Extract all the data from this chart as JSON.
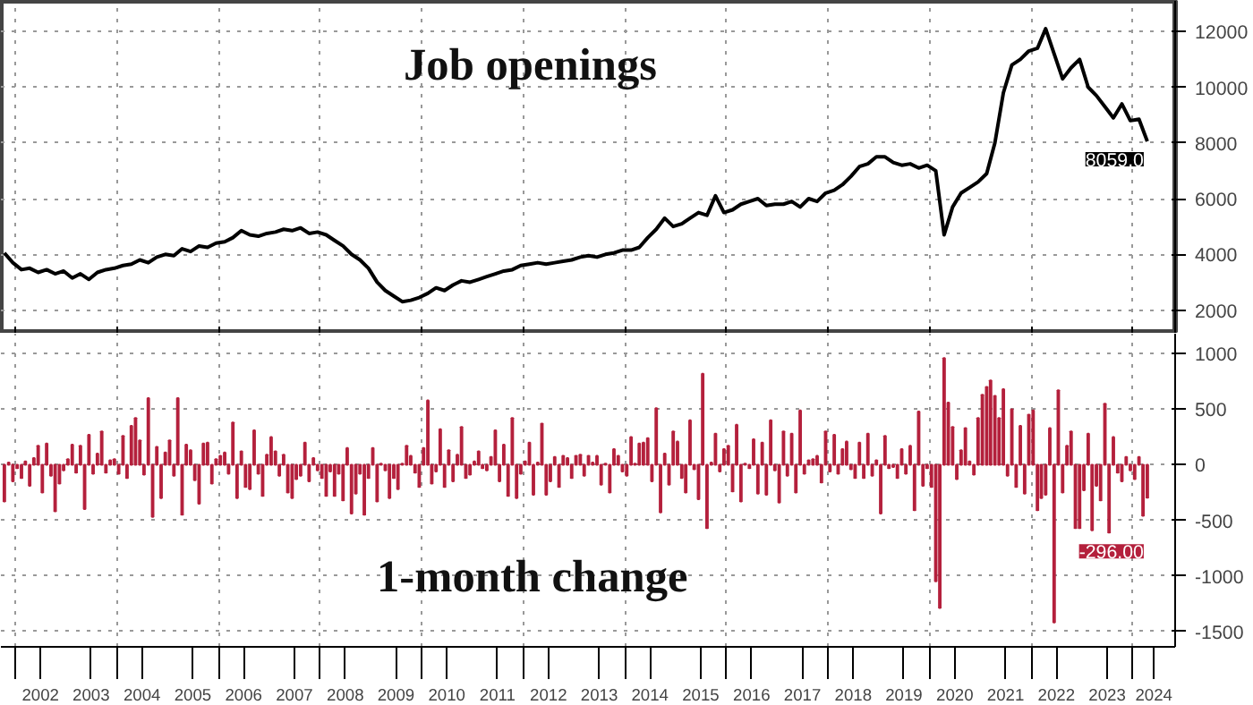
{
  "chart_data": [
    {
      "type": "line",
      "title": "Job openings",
      "x": [
        "2001-10",
        "2001-12",
        "2002-02",
        "2002-04",
        "2002-06",
        "2002-08",
        "2002-10",
        "2002-12",
        "2003-02",
        "2003-04",
        "2003-06",
        "2003-08",
        "2003-10",
        "2003-12",
        "2004-02",
        "2004-04",
        "2004-06",
        "2004-08",
        "2004-10",
        "2004-12",
        "2005-02",
        "2005-04",
        "2005-06",
        "2005-08",
        "2005-10",
        "2005-12",
        "2006-02",
        "2006-04",
        "2006-06",
        "2006-08",
        "2006-10",
        "2006-12",
        "2007-02",
        "2007-04",
        "2007-06",
        "2007-08",
        "2007-10",
        "2007-12",
        "2008-02",
        "2008-04",
        "2008-06",
        "2008-08",
        "2008-10",
        "2008-12",
        "2009-02",
        "2009-04",
        "2009-06",
        "2009-08",
        "2009-10",
        "2009-12",
        "2010-02",
        "2010-04",
        "2010-06",
        "2010-08",
        "2010-10",
        "2010-12",
        "2011-02",
        "2011-04",
        "2011-06",
        "2011-08",
        "2011-10",
        "2011-12",
        "2012-02",
        "2012-04",
        "2012-06",
        "2012-08",
        "2012-10",
        "2012-12",
        "2013-02",
        "2013-04",
        "2013-06",
        "2013-08",
        "2013-10",
        "2013-12",
        "2014-02",
        "2014-04",
        "2014-06",
        "2014-08",
        "2014-10",
        "2014-12",
        "2015-02",
        "2015-04",
        "2015-06",
        "2015-08",
        "2015-10",
        "2015-12",
        "2016-02",
        "2016-04",
        "2016-06",
        "2016-08",
        "2016-10",
        "2016-12",
        "2017-02",
        "2017-04",
        "2017-06",
        "2017-08",
        "2017-10",
        "2017-12",
        "2018-02",
        "2018-04",
        "2018-06",
        "2018-08",
        "2018-10",
        "2018-12",
        "2019-02",
        "2019-04",
        "2019-06",
        "2019-08",
        "2019-10",
        "2019-12",
        "2020-02",
        "2020-04",
        "2020-06",
        "2020-08",
        "2020-10",
        "2020-12",
        "2021-02",
        "2021-04",
        "2021-06",
        "2021-08",
        "2021-10",
        "2021-12",
        "2022-02",
        "2022-04",
        "2022-06",
        "2022-08",
        "2022-10",
        "2022-12",
        "2023-02",
        "2023-04",
        "2023-06",
        "2023-08",
        "2023-10",
        "2023-12",
        "2024-02",
        "2024-04"
      ],
      "series": [
        {
          "color": "#000000",
          "values": [
            4050,
            3700,
            3450,
            3500,
            3350,
            3450,
            3300,
            3400,
            3150,
            3300,
            3100,
            3350,
            3450,
            3500,
            3600,
            3650,
            3800,
            3700,
            3900,
            4000,
            3950,
            4200,
            4100,
            4300,
            4250,
            4400,
            4450,
            4600,
            4850,
            4700,
            4650,
            4750,
            4800,
            4900,
            4850,
            4950,
            4750,
            4800,
            4700,
            4500,
            4300,
            4000,
            3800,
            3500,
            3000,
            2700,
            2500,
            2300,
            2350,
            2450,
            2600,
            2800,
            2700,
            2900,
            3050,
            3000,
            3100,
            3200,
            3300,
            3400,
            3450,
            3600,
            3650,
            3700,
            3650,
            3700,
            3750,
            3800,
            3900,
            3950,
            3900,
            4000,
            4050,
            4150,
            4150,
            4250,
            4600,
            4900,
            5300,
            5000,
            5100,
            5300,
            5500,
            5400,
            6100,
            5500,
            5600,
            5800,
            5900,
            6000,
            5750,
            5800,
            5800,
            5900,
            5700,
            6000,
            5900,
            6200,
            6300,
            6500,
            6800,
            7150,
            7250,
            7500,
            7500,
            7300,
            7200,
            7250,
            7100,
            7200,
            7000,
            4700,
            5700,
            6200,
            6400,
            6600,
            6900,
            8000,
            9800,
            10800,
            11000,
            11300,
            11400,
            12100,
            11200,
            10300,
            10700,
            11000,
            10000,
            9700,
            9300,
            8900,
            9400,
            8800,
            8850,
            8059
          ]
        }
      ],
      "xlim": [
        "2001-09-20",
        "2024-11-01"
      ],
      "xticks": [
        {
          "value": "2002-01-01",
          "label": null
        },
        {
          "value": "2004-01-01",
          "label": null
        },
        {
          "value": "2006-01-01",
          "label": null
        },
        {
          "value": "2008-01-01",
          "label": null
        },
        {
          "value": "2010-01-01",
          "label": null
        },
        {
          "value": "2012-01-01",
          "label": null
        },
        {
          "value": "2014-01-01",
          "label": null
        },
        {
          "value": "2016-01-01",
          "label": null
        },
        {
          "value": "2018-01-01",
          "label": null
        },
        {
          "value": "2020-01-01",
          "label": null
        },
        {
          "value": "2022-01-01",
          "label": null
        },
        {
          "value": "2024-01-01",
          "label": null
        }
      ],
      "ylim": [
        1150,
        13100
      ],
      "yticks": [
        2000,
        4000,
        6000,
        8000,
        10000,
        12000
      ],
      "grid": true,
      "line_style": "solid",
      "tick_labels": "y",
      "annotations": [
        {
          "text": "8059.0",
          "x": "2024-04",
          "y": 8059
        }
      ]
    },
    {
      "type": "bar",
      "title": "1-month change",
      "x": [
        "2001-10",
        "2001-11",
        "2001-12",
        "2002-01",
        "2002-02",
        "2002-03",
        "2002-04",
        "2002-05",
        "2002-06",
        "2002-07",
        "2002-08",
        "2002-09",
        "2002-10",
        "2002-11",
        "2002-12",
        "2003-01",
        "2003-02",
        "2003-03",
        "2003-04",
        "2003-05",
        "2003-06",
        "2003-07",
        "2003-08",
        "2003-09",
        "2003-10",
        "2003-11",
        "2003-12",
        "2004-01",
        "2004-02",
        "2004-03",
        "2004-04",
        "2004-05",
        "2004-06",
        "2004-07",
        "2004-08",
        "2004-09",
        "2004-10",
        "2004-11",
        "2004-12",
        "2005-01",
        "2005-02",
        "2005-03",
        "2005-04",
        "2005-05",
        "2005-06",
        "2005-07",
        "2005-08",
        "2005-09",
        "2005-10",
        "2005-11",
        "2005-12",
        "2006-01",
        "2006-02",
        "2006-03",
        "2006-04",
        "2006-05",
        "2006-06",
        "2006-07",
        "2006-08",
        "2006-09",
        "2006-10",
        "2006-11",
        "2006-12",
        "2007-01",
        "2007-02",
        "2007-03",
        "2007-04",
        "2007-05",
        "2007-06",
        "2007-07",
        "2007-08",
        "2007-09",
        "2007-10",
        "2007-11",
        "2007-12",
        "2008-01",
        "2008-02",
        "2008-03",
        "2008-04",
        "2008-05",
        "2008-06",
        "2008-07",
        "2008-08",
        "2008-09",
        "2008-10",
        "2008-11",
        "2008-12",
        "2009-01",
        "2009-02",
        "2009-03",
        "2009-04",
        "2009-05",
        "2009-06",
        "2009-07",
        "2009-08",
        "2009-09",
        "2009-10",
        "2009-11",
        "2009-12",
        "2010-01",
        "2010-02",
        "2010-03",
        "2010-04",
        "2010-05",
        "2010-06",
        "2010-07",
        "2010-08",
        "2010-09",
        "2010-10",
        "2010-11",
        "2010-12",
        "2011-01",
        "2011-02",
        "2011-03",
        "2011-04",
        "2011-05",
        "2011-06",
        "2011-07",
        "2011-08",
        "2011-09",
        "2011-10",
        "2011-11",
        "2011-12",
        "2012-01",
        "2012-02",
        "2012-03",
        "2012-04",
        "2012-05",
        "2012-06",
        "2012-07",
        "2012-08",
        "2012-09",
        "2012-10",
        "2012-11",
        "2012-12",
        "2013-01",
        "2013-02",
        "2013-03",
        "2013-04",
        "2013-05",
        "2013-06",
        "2013-07",
        "2013-08",
        "2013-09",
        "2013-10",
        "2013-11",
        "2013-12",
        "2014-01",
        "2014-02",
        "2014-03",
        "2014-04",
        "2014-05",
        "2014-06",
        "2014-07",
        "2014-08",
        "2014-09",
        "2014-10",
        "2014-11",
        "2014-12",
        "2015-01",
        "2015-02",
        "2015-03",
        "2015-04",
        "2015-05",
        "2015-06",
        "2015-07",
        "2015-08",
        "2015-09",
        "2015-10",
        "2015-11",
        "2015-12",
        "2016-01",
        "2016-02",
        "2016-03",
        "2016-04",
        "2016-05",
        "2016-06",
        "2016-07",
        "2016-08",
        "2016-09",
        "2016-10",
        "2016-11",
        "2016-12",
        "2017-01",
        "2017-02",
        "2017-03",
        "2017-04",
        "2017-05",
        "2017-06",
        "2017-07",
        "2017-08",
        "2017-09",
        "2017-10",
        "2017-11",
        "2017-12",
        "2018-01",
        "2018-02",
        "2018-03",
        "2018-04",
        "2018-05",
        "2018-06",
        "2018-07",
        "2018-08",
        "2018-09",
        "2018-10",
        "2018-11",
        "2018-12",
        "2019-01",
        "2019-02",
        "2019-03",
        "2019-04",
        "2019-05",
        "2019-06",
        "2019-07",
        "2019-08",
        "2019-09",
        "2019-10",
        "2019-11",
        "2019-12",
        "2020-01",
        "2020-02",
        "2020-03",
        "2020-04",
        "2020-05",
        "2020-06",
        "2020-07",
        "2020-08",
        "2020-09",
        "2020-10",
        "2020-11",
        "2020-12",
        "2021-01",
        "2021-02",
        "2021-03",
        "2021-04",
        "2021-05",
        "2021-06",
        "2021-07",
        "2021-08",
        "2021-09",
        "2021-10",
        "2021-11",
        "2021-12",
        "2022-01",
        "2022-02",
        "2022-03",
        "2022-04",
        "2022-05",
        "2022-06",
        "2022-07",
        "2022-08",
        "2022-09",
        "2022-10",
        "2022-11",
        "2022-12",
        "2023-01",
        "2023-02",
        "2023-03",
        "2023-04",
        "2023-05",
        "2023-06",
        "2023-07",
        "2023-08",
        "2023-09",
        "2023-10",
        "2023-11",
        "2023-12",
        "2024-01",
        "2024-02",
        "2024-03",
        "2024-04"
      ],
      "series": [
        {
          "color": "#b4203c",
          "values": [
            -330,
            20,
            -150,
            -30,
            -120,
            30,
            -190,
            60,
            170,
            -250,
            190,
            -100,
            -420,
            -170,
            -50,
            50,
            180,
            -70,
            170,
            -400,
            270,
            -80,
            100,
            300,
            -70,
            40,
            50,
            -80,
            260,
            -120,
            350,
            420,
            220,
            -90,
            600,
            -470,
            160,
            -300,
            110,
            220,
            -100,
            600,
            -450,
            180,
            130,
            -140,
            -350,
            190,
            200,
            -170,
            50,
            80,
            110,
            -80,
            380,
            -300,
            120,
            -200,
            -220,
            310,
            -80,
            -280,
            90,
            250,
            120,
            -100,
            90,
            -250,
            -300,
            -130,
            -100,
            200,
            -150,
            60,
            -50,
            -120,
            -280,
            -60,
            -280,
            -80,
            -320,
            150,
            -440,
            -260,
            -80,
            -450,
            -120,
            150,
            -330,
            10,
            -50,
            -300,
            -120,
            -220,
            10,
            170,
            80,
            -70,
            -200,
            150,
            580,
            -170,
            -60,
            320,
            -200,
            130,
            -150,
            90,
            340,
            -120,
            -90,
            30,
            120,
            -30,
            -50,
            70,
            310,
            -150,
            180,
            -280,
            420,
            -300,
            -80,
            30,
            200,
            -270,
            20,
            370,
            -270,
            -150,
            70,
            -200,
            80,
            60,
            -120,
            80,
            90,
            -100,
            80,
            20,
            80,
            -180,
            10,
            -250,
            140,
            80,
            -60,
            -100,
            250,
            10,
            190,
            200,
            240,
            -150,
            510,
            -430,
            100,
            -180,
            300,
            210,
            -120,
            -250,
            400,
            -40,
            -310,
            820,
            -570,
            20,
            280,
            -60,
            140,
            170,
            -240,
            360,
            -330,
            10,
            -30,
            230,
            -260,
            200,
            -270,
            400,
            -50,
            -340,
            300,
            -100,
            280,
            -250,
            490,
            -80,
            40,
            50,
            80,
            -160,
            300,
            -60,
            270,
            -80,
            140,
            210,
            -40,
            -120,
            200,
            -120,
            280,
            -100,
            40,
            -440,
            260,
            -30,
            -20,
            -120,
            140,
            -80,
            170,
            -410,
            480,
            -190,
            -30,
            -200,
            -1050,
            -1290,
            960,
            560,
            340,
            -130,
            130,
            330,
            30,
            -90,
            420,
            630,
            700,
            760,
            620,
            420,
            680,
            -100,
            500,
            -200,
            350,
            -260,
            450,
            490,
            -410,
            -300,
            -270,
            330,
            -1420,
            670,
            -250,
            170,
            300,
            -570,
            -570,
            -230,
            280,
            -590,
            -190,
            -320,
            550,
            -610,
            250,
            -70,
            -150,
            70,
            -50,
            -130,
            70,
            -460,
            -296
          ]
        }
      ],
      "xlim": [
        "2001-09-20",
        "2024-11-01"
      ],
      "xticks": [
        {
          "value": "2002-01-01",
          "label": null
        },
        {
          "value": "2002-07-01",
          "label": "2002"
        },
        {
          "value": "2003-07-01",
          "label": "2003"
        },
        {
          "value": "2004-01-01",
          "label": null
        },
        {
          "value": "2004-07-01",
          "label": "2004"
        },
        {
          "value": "2005-07-01",
          "label": "2005"
        },
        {
          "value": "2006-01-01",
          "label": null
        },
        {
          "value": "2006-07-01",
          "label": "2006"
        },
        {
          "value": "2007-07-01",
          "label": "2007"
        },
        {
          "value": "2008-01-01",
          "label": null
        },
        {
          "value": "2008-07-01",
          "label": "2008"
        },
        {
          "value": "2009-07-01",
          "label": "2009"
        },
        {
          "value": "2010-01-01",
          "label": null
        },
        {
          "value": "2010-07-01",
          "label": "2010"
        },
        {
          "value": "2011-07-01",
          "label": "2011"
        },
        {
          "value": "2012-01-01",
          "label": null
        },
        {
          "value": "2012-07-01",
          "label": "2012"
        },
        {
          "value": "2013-07-01",
          "label": "2013"
        },
        {
          "value": "2014-01-01",
          "label": null
        },
        {
          "value": "2014-07-01",
          "label": "2014"
        },
        {
          "value": "2015-07-01",
          "label": "2015"
        },
        {
          "value": "2016-01-01",
          "label": null
        },
        {
          "value": "2016-07-01",
          "label": "2016"
        },
        {
          "value": "2017-07-01",
          "label": "2017"
        },
        {
          "value": "2018-01-01",
          "label": null
        },
        {
          "value": "2018-07-01",
          "label": "2018"
        },
        {
          "value": "2019-07-01",
          "label": "2019"
        },
        {
          "value": "2020-01-01",
          "label": null
        },
        {
          "value": "2020-07-01",
          "label": "2020"
        },
        {
          "value": "2021-07-01",
          "label": "2021"
        },
        {
          "value": "2022-01-01",
          "label": null
        },
        {
          "value": "2022-07-01",
          "label": "2022"
        },
        {
          "value": "2023-07-01",
          "label": "2023"
        },
        {
          "value": "2024-01-01",
          "label": null
        },
        {
          "value": "2024-06-01",
          "label": "2024"
        }
      ],
      "ylim": [
        -1640,
        1180
      ],
      "yticks": [
        -1500,
        -1000,
        -500,
        0,
        500,
        1000
      ],
      "grid": true,
      "annotations": [
        {
          "text": "-296.00",
          "x": "2024-04",
          "y": -296
        }
      ]
    }
  ]
}
